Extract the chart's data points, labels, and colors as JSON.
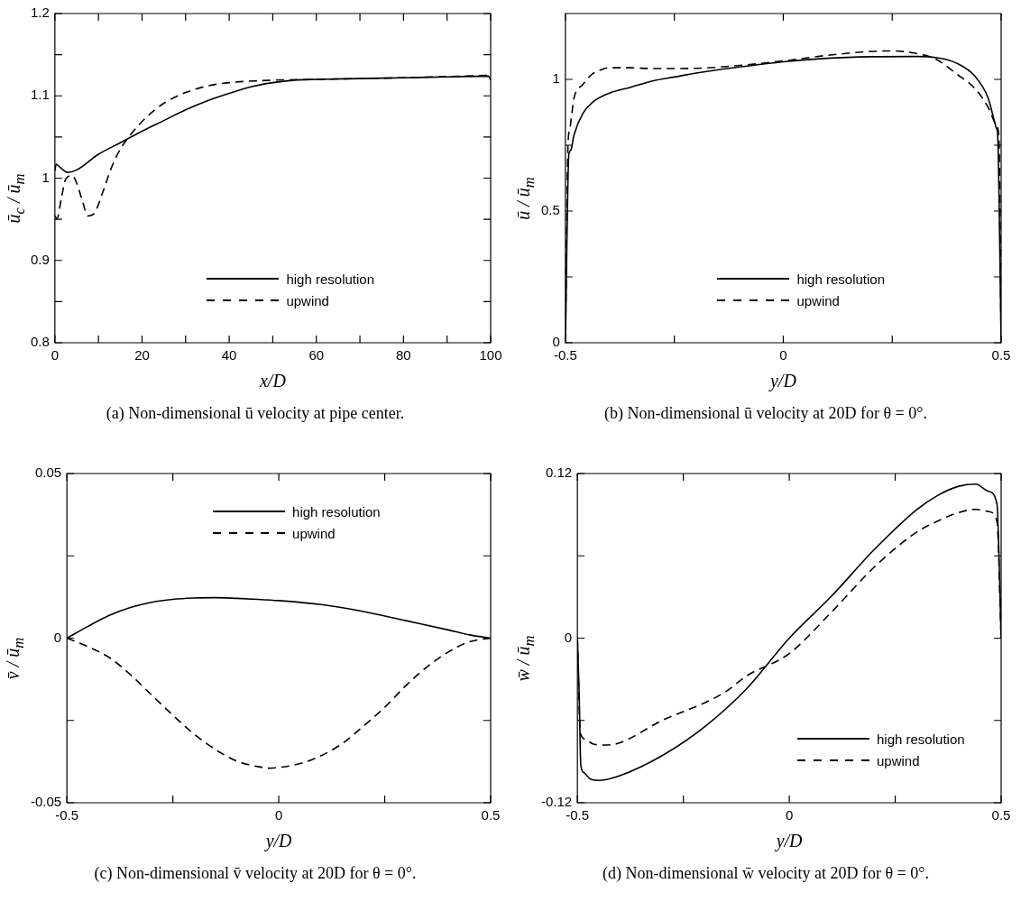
{
  "chart_data": [
    {
      "type": "line",
      "xlabel": "x/D",
      "ylabel": "ū$_{c}$ / ū$_{m}$",
      "annotations": [
        "(a) Non-dimensional ū velocity at pipe center."
      ],
      "legend": "bottom",
      "grid": false,
      "marker": "none",
      "xlim": [
        0,
        100
      ],
      "xticks": [
        0,
        {
          "value": 10,
          "label": null
        },
        20,
        {
          "value": 30,
          "label": null
        },
        40,
        {
          "value": 50,
          "label": null
        },
        60,
        {
          "value": 70,
          "label": null
        },
        80,
        {
          "value": 90,
          "label": null
        },
        100
      ],
      "ylim": [
        0.8,
        1.2
      ],
      "yticks": [
        0.8,
        {
          "value": 0.85,
          "label": null
        },
        0.9,
        {
          "value": 0.95,
          "label": null
        },
        1,
        {
          "value": 1.05,
          "label": null
        },
        1.1,
        {
          "value": 1.15,
          "label": null
        },
        1.2
      ],
      "series": [
        {
          "name": "high resolution",
          "color": "#000000",
          "line_style": "solid",
          "x": [
            0,
            0.3,
            1,
            3,
            5,
            10,
            15,
            20,
            25,
            30,
            35,
            40,
            45,
            50,
            55,
            60,
            70,
            80,
            90,
            99.5,
            100
          ],
          "values": [
            1.009,
            1.017,
            1.014,
            1.007,
            1.01,
            1.029,
            1.043,
            1.057,
            1.07,
            1.083,
            1.094,
            1.103,
            1.111,
            1.116,
            1.119,
            1.12,
            1.121,
            1.122,
            1.123,
            1.124,
            1.119
          ]
        },
        {
          "name": "upwind",
          "color": "#000000",
          "line_style": "dashed",
          "x": [
            0,
            0.5,
            1.5,
            2.5,
            4,
            5,
            6.5,
            7.5,
            9,
            11,
            13,
            15,
            18,
            21,
            25,
            30,
            35,
            40,
            50,
            60,
            80,
            100
          ],
          "values": [
            0.954,
            0.951,
            0.976,
            0.999,
            1.003,
            0.994,
            0.969,
            0.954,
            0.957,
            0.983,
            1.013,
            1.035,
            1.057,
            1.074,
            1.091,
            1.104,
            1.112,
            1.116,
            1.119,
            1.12,
            1.122,
            1.125
          ]
        }
      ]
    },
    {
      "type": "line",
      "xlabel": "y/D",
      "ylabel": "ū / ū$_{m}$",
      "annotations": [
        "(b) Non-dimensional ū velocity at 20D for θ = 0°."
      ],
      "legend": "bottom",
      "grid": false,
      "marker": "none",
      "xlim": [
        -0.5,
        0.5
      ],
      "xticks": [
        -0.5,
        {
          "value": -0.25,
          "label": null
        },
        0,
        {
          "value": 0.25,
          "label": null
        },
        0.5
      ],
      "ylim": [
        0,
        1.25
      ],
      "yticks": [
        0,
        {
          "value": 0.25,
          "label": null
        },
        0.5,
        {
          "value": 0.75,
          "label": null
        },
        1
      ],
      "series": [
        {
          "name": "high resolution",
          "color": "#000000",
          "line_style": "solid",
          "x": [
            -0.5,
            -0.492,
            -0.488,
            -0.48,
            -0.46,
            -0.44,
            -0.4,
            -0.35,
            -0.3,
            -0.25,
            -0.2,
            -0.1,
            0,
            0.1,
            0.2,
            0.3,
            0.35,
            0.4,
            0.44,
            0.47,
            0.49,
            0.492,
            0.5
          ],
          "values": [
            0,
            0.717,
            0.73,
            0.79,
            0.87,
            0.91,
            0.947,
            0.97,
            0.994,
            1.009,
            1.024,
            1.047,
            1.067,
            1.08,
            1.086,
            1.087,
            1.083,
            1.06,
            1.012,
            0.93,
            0.81,
            0.79,
            0
          ]
        },
        {
          "name": "upwind",
          "color": "#000000",
          "line_style": "dashed",
          "x": [
            -0.5,
            -0.494,
            -0.49,
            -0.48,
            -0.46,
            -0.44,
            -0.42,
            -0.4,
            -0.35,
            -0.3,
            -0.2,
            -0.1,
            0,
            0.1,
            0.2,
            0.25,
            0.3,
            0.35,
            0.4,
            0.44,
            0.47,
            0.49,
            0.495,
            0.5
          ],
          "values": [
            0,
            0.75,
            0.81,
            0.93,
            0.98,
            1.018,
            1.035,
            1.044,
            1.044,
            1.041,
            1.042,
            1.053,
            1.07,
            1.091,
            1.106,
            1.108,
            1.1,
            1.077,
            1.018,
            0.965,
            0.894,
            0.823,
            0.776,
            0
          ]
        }
      ]
    },
    {
      "type": "line",
      "xlabel": "y/D",
      "ylabel": "v̄ / ū$_{m}$",
      "annotations": [
        "(c) Non-dimensional v̄ velocity at 20D for θ = 0°."
      ],
      "legend": "top",
      "grid": false,
      "marker": "none",
      "xlim": [
        -0.5,
        0.5
      ],
      "xticks": [
        -0.5,
        {
          "value": -0.25,
          "label": null
        },
        0,
        {
          "value": 0.25,
          "label": null
        },
        0.5
      ],
      "ylim": [
        -0.05,
        0.05
      ],
      "yticks": [
        -0.05,
        {
          "value": -0.025,
          "label": null
        },
        0,
        {
          "value": 0.025,
          "label": null
        },
        0.05
      ],
      "series": [
        {
          "name": "high resolution",
          "color": "#000000",
          "line_style": "solid",
          "x": [
            -0.5,
            -0.45,
            -0.4,
            -0.35,
            -0.3,
            -0.25,
            -0.2,
            -0.15,
            -0.1,
            -0.05,
            0,
            0.1,
            0.2,
            0.3,
            0.4,
            0.45,
            0.5
          ],
          "values": [
            0,
            0.0036,
            0.0069,
            0.0093,
            0.0109,
            0.0118,
            0.0122,
            0.0123,
            0.0121,
            0.0118,
            0.0114,
            0.0102,
            0.0081,
            0.0053,
            0.0025,
            0.001,
            0
          ]
        },
        {
          "name": "upwind",
          "color": "#000000",
          "line_style": "dashed",
          "x": [
            -0.5,
            -0.45,
            -0.4,
            -0.35,
            -0.3,
            -0.25,
            -0.2,
            -0.15,
            -0.1,
            -0.05,
            -0.02,
            0,
            0.05,
            0.1,
            0.15,
            0.2,
            0.25,
            0.3,
            0.35,
            0.4,
            0.45,
            0.5
          ],
          "values": [
            0,
            -0.0026,
            -0.0059,
            -0.0111,
            -0.0173,
            -0.0234,
            -0.0291,
            -0.0338,
            -0.0373,
            -0.039,
            -0.0395,
            -0.0393,
            -0.0381,
            -0.0357,
            -0.032,
            -0.0267,
            -0.021,
            -0.0144,
            -0.0087,
            -0.0042,
            -0.0011,
            0
          ]
        }
      ]
    },
    {
      "type": "line",
      "xlabel": "y/D",
      "ylabel": "w̄ / ū$_{m}$",
      "annotations": [
        "(d) Non-dimensional w̄ velocity at 20D for θ = 0°."
      ],
      "legend": "bottom right",
      "grid": false,
      "marker": "none",
      "xlim": [
        -0.5,
        0.5
      ],
      "xticks": [
        -0.5,
        {
          "value": -0.25,
          "label": null
        },
        0,
        {
          "value": 0.25,
          "label": null
        },
        0.5
      ],
      "ylim": [
        -0.12,
        0.12
      ],
      "yticks": [
        -0.12,
        {
          "value": -0.06,
          "label": null
        },
        0,
        {
          "value": 0.06,
          "label": null
        },
        0.12
      ],
      "series": [
        {
          "name": "high resolution",
          "color": "#000000",
          "line_style": "solid",
          "x": [
            -0.5,
            -0.496,
            -0.492,
            -0.485,
            -0.47,
            -0.45,
            -0.4,
            -0.3,
            -0.2,
            -0.1,
            0,
            0.1,
            0.2,
            0.3,
            0.35,
            0.4,
            0.44,
            0.47,
            0.49,
            0.5
          ],
          "values": [
            0,
            -0.039,
            -0.0926,
            -0.098,
            -0.1026,
            -0.1037,
            -0.1002,
            -0.0856,
            -0.0647,
            -0.0367,
            0,
            0.0307,
            0.0644,
            0.0935,
            0.104,
            0.1107,
            0.1123,
            0.107,
            0.0981,
            0
          ]
        },
        {
          "name": "upwind",
          "color": "#000000",
          "line_style": "dashed",
          "x": [
            -0.5,
            -0.494,
            -0.49,
            -0.48,
            -0.46,
            -0.43,
            -0.4,
            -0.3,
            -0.2,
            -0.15,
            -0.1,
            0,
            0.1,
            0.2,
            0.3,
            0.35,
            0.4,
            0.44,
            0.47,
            0.49,
            0.5
          ],
          "values": [
            0,
            -0.0647,
            -0.0716,
            -0.074,
            -0.0774,
            -0.0779,
            -0.0763,
            -0.06,
            -0.0472,
            -0.039,
            -0.0274,
            -0.0112,
            0.0191,
            0.0516,
            0.0772,
            0.0853,
            0.0916,
            0.0939,
            0.0923,
            0.0853,
            0
          ]
        }
      ]
    }
  ]
}
